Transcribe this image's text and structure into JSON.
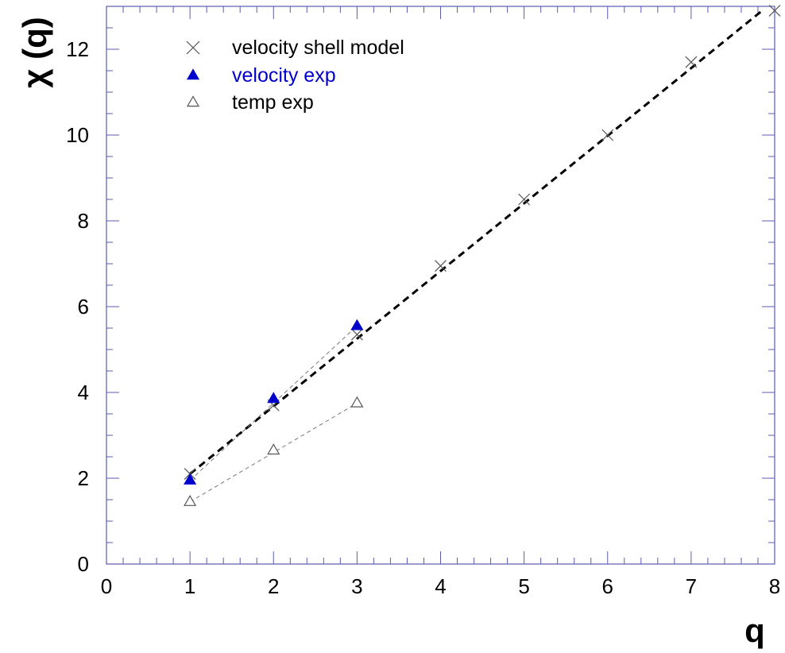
{
  "chart_data": {
    "type": "scatter",
    "title": "",
    "xlabel": "q",
    "ylabel": "χ (q)",
    "xlim": [
      0,
      8
    ],
    "ylim": [
      0,
      13
    ],
    "x_ticks": [
      0,
      1,
      2,
      3,
      4,
      5,
      6,
      7,
      8
    ],
    "y_ticks": [
      0,
      2,
      4,
      6,
      8,
      10,
      12
    ],
    "grid": false,
    "legend_position": "top-left",
    "series": [
      {
        "name": "velocity shell model",
        "marker": "cross",
        "color": "#555555",
        "points": [
          {
            "x": 1,
            "y": 2.1
          },
          {
            "x": 2,
            "y": 3.7
          },
          {
            "x": 3,
            "y": 5.35
          },
          {
            "x": 4,
            "y": 6.95
          },
          {
            "x": 5,
            "y": 8.5
          },
          {
            "x": 6,
            "y": 10.0
          },
          {
            "x": 7,
            "y": 11.7
          },
          {
            "x": 8,
            "y": 12.9
          }
        ]
      },
      {
        "name": "velocity exp",
        "marker": "filled-triangle",
        "color": "#0000cc",
        "points": [
          {
            "x": 1,
            "y": 1.95
          },
          {
            "x": 2,
            "y": 3.85
          },
          {
            "x": 3,
            "y": 5.55
          }
        ]
      },
      {
        "name": "temp exp",
        "marker": "open-triangle",
        "color": "#555555",
        "points": [
          {
            "x": 1,
            "y": 1.45
          },
          {
            "x": 2,
            "y": 2.65
          },
          {
            "x": 3,
            "y": 3.75
          }
        ]
      }
    ],
    "fit_lines": [
      {
        "style": "thick-dashed",
        "color": "#000000",
        "from": {
          "x": 1,
          "y": 2.1
        },
        "to": {
          "x": 7.85,
          "y": 12.9
        }
      },
      {
        "style": "thin-dashed",
        "color": "#777777",
        "from": {
          "x": 1,
          "y": 1.95
        },
        "to": {
          "x": 3,
          "y": 5.55
        }
      },
      {
        "style": "thin-dashed",
        "color": "#777777",
        "from": {
          "x": 1,
          "y": 1.45
        },
        "to": {
          "x": 3,
          "y": 3.75
        }
      }
    ]
  }
}
